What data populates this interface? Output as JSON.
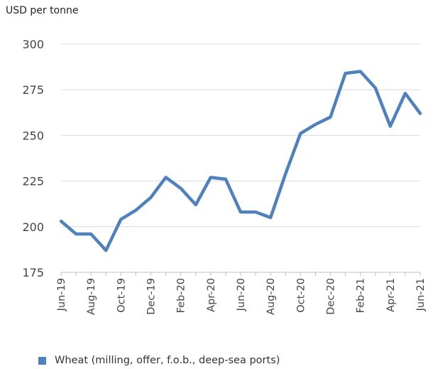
{
  "chart_data": {
    "type": "line",
    "ylabel": "USD per tonne",
    "ylim": [
      175,
      300
    ],
    "yticks": [
      175,
      200,
      225,
      250,
      275,
      300
    ],
    "grid": "horizontal",
    "legend_position": "bottom-left",
    "x": [
      "Jun-19",
      "Jul-19",
      "Aug-19",
      "Sep-19",
      "Oct-19",
      "Nov-19",
      "Dec-19",
      "Jan-20",
      "Feb-20",
      "Mar-20",
      "Apr-20",
      "May-20",
      "Jun-20",
      "Jul-20",
      "Aug-20",
      "Sep-20",
      "Oct-20",
      "Nov-20",
      "Dec-20",
      "Jan-21",
      "Feb-21",
      "Mar-21",
      "Apr-21",
      "May-21",
      "Jun-21"
    ],
    "x_tick_labels": [
      "Jun-19",
      "Aug-19",
      "Oct-19",
      "Dec-19",
      "Feb-20",
      "Apr-20",
      "Jun-20",
      "Aug-20",
      "Oct-20",
      "Dec-20",
      "Feb-21",
      "Apr-21",
      "Jun-21"
    ],
    "series": [
      {
        "name": "Wheat (milling, offer, f.o.b., deep-sea ports)",
        "color": "#4f81bd",
        "values": [
          203,
          196,
          196,
          187,
          204,
          209,
          216,
          227,
          221,
          212,
          227,
          226,
          208,
          208,
          205,
          229,
          251,
          256,
          260,
          284,
          285,
          276,
          255,
          273,
          262
        ]
      }
    ]
  }
}
